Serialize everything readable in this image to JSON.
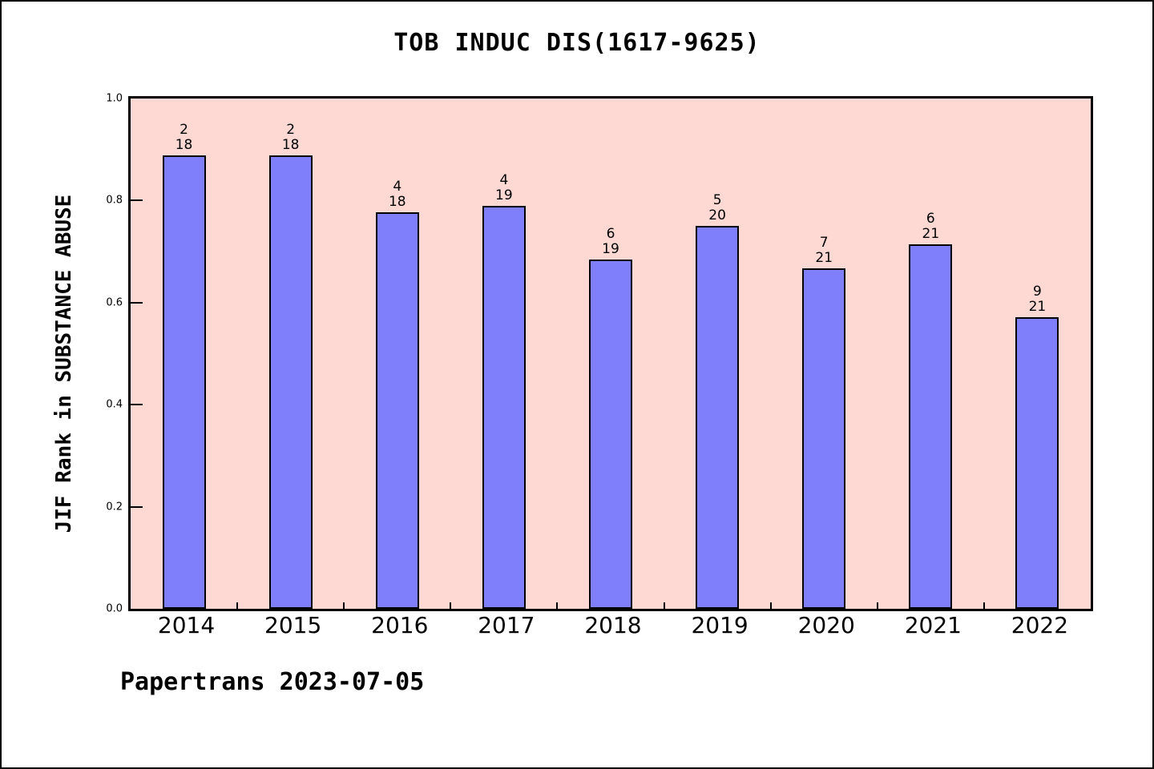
{
  "chart_data": {
    "type": "bar",
    "title": "TOB INDUC DIS(1617-9625)",
    "ylabel": "JIF Rank in SUBSTANCE ABUSE",
    "xlabel": "",
    "categories": [
      "2014",
      "2015",
      "2016",
      "2017",
      "2018",
      "2019",
      "2020",
      "2021",
      "2022"
    ],
    "values": [
      0.8889,
      0.8889,
      0.7778,
      0.7895,
      0.6842,
      0.75,
      0.6667,
      0.7143,
      0.5714
    ],
    "fractions": [
      {
        "numerator": "2",
        "denominator": "18"
      },
      {
        "numerator": "2",
        "denominator": "18"
      },
      {
        "numerator": "4",
        "denominator": "18"
      },
      {
        "numerator": "4",
        "denominator": "19"
      },
      {
        "numerator": "6",
        "denominator": "19"
      },
      {
        "numerator": "5",
        "denominator": "20"
      },
      {
        "numerator": "7",
        "denominator": "21"
      },
      {
        "numerator": "6",
        "denominator": "21"
      },
      {
        "numerator": "9",
        "denominator": "21"
      }
    ],
    "yticks": [
      "0.0",
      "0.2",
      "0.4",
      "0.6",
      "0.8",
      "1.0"
    ],
    "ylim": [
      0.0,
      1.0
    ],
    "grid": false,
    "legend": null,
    "colors": {
      "bar_fill": "#7f7ffb",
      "bar_border": "#000000",
      "plot_background": "#fed9d3",
      "page_background": "#ffffff",
      "text": "#000000"
    }
  },
  "footer": {
    "text": "Papertrans 2023-07-05"
  }
}
